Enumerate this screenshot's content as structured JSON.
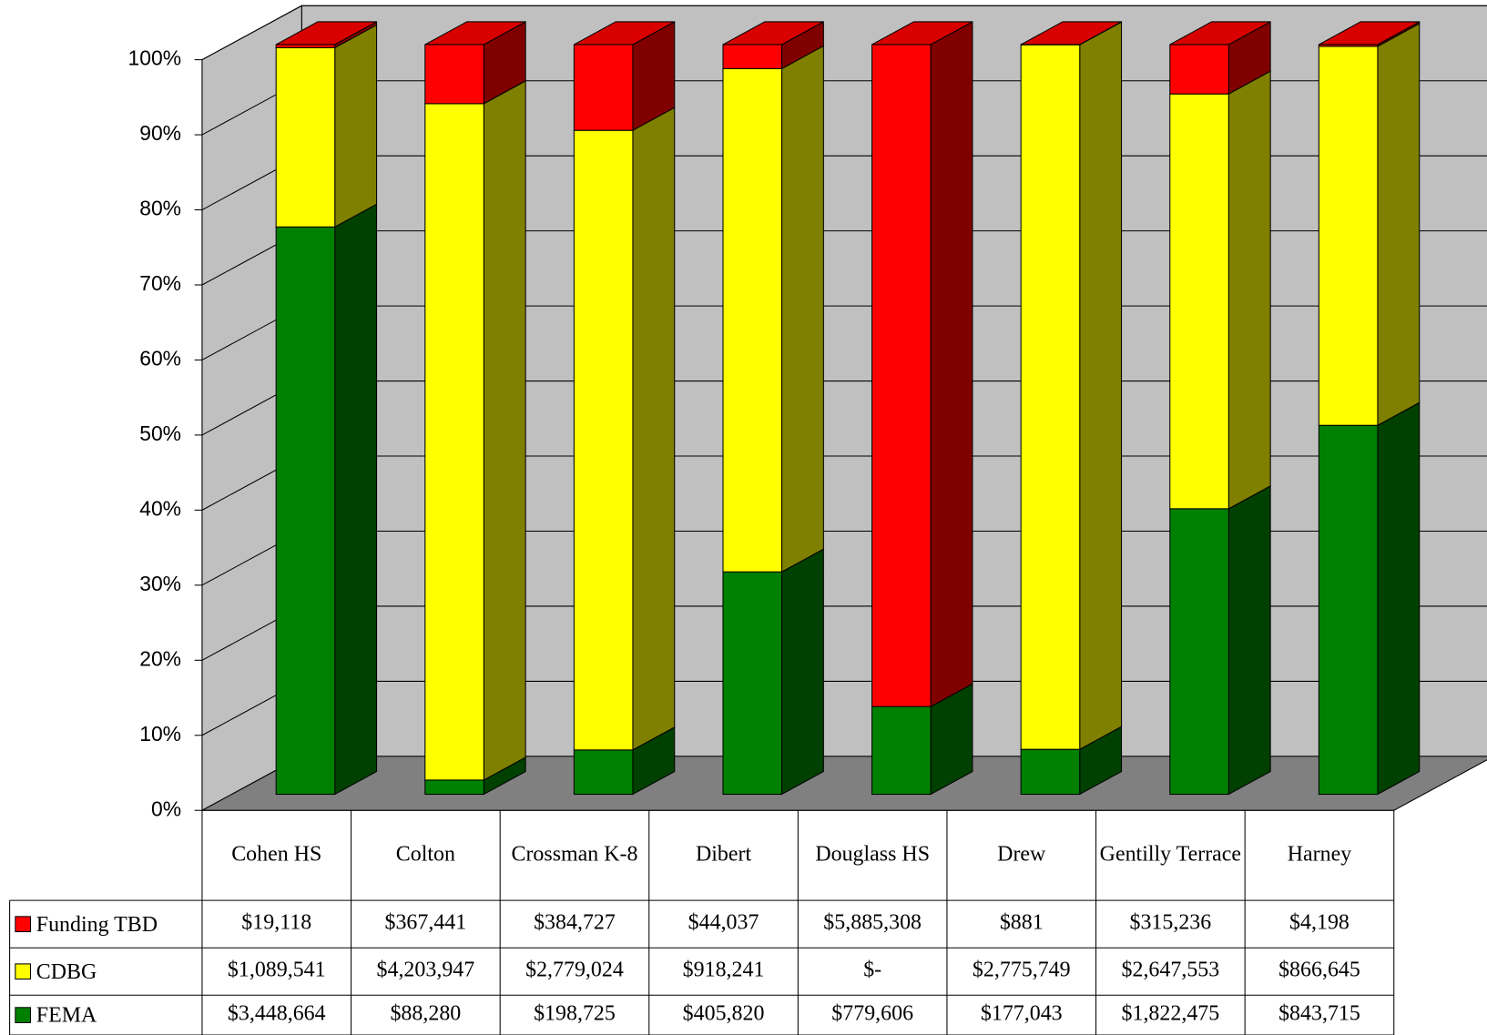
{
  "chart_data": {
    "type": "bar",
    "stack": "percent",
    "categories": [
      "Cohen HS",
      "Colton",
      "Crossman K-8",
      "Dibert",
      "Douglass HS",
      "Drew",
      "Gentilly Terrace",
      "Harney"
    ],
    "series": [
      {
        "name": "Funding TBD",
        "color": "#ff0000",
        "values": [
          19118,
          367441,
          384727,
          44037,
          5885308,
          881,
          315236,
          4198
        ],
        "value_labels": [
          "$19,118",
          "$367,441",
          "$384,727",
          "$44,037",
          "$5,885,308",
          "$881",
          "$315,236",
          "$4,198"
        ]
      },
      {
        "name": "CDBG",
        "color": "#ffff00",
        "values": [
          1089541,
          4203947,
          2779024,
          918241,
          0,
          2775749,
          2647553,
          866645
        ],
        "value_labels": [
          "$1,089,541",
          "$4,203,947",
          "$2,779,024",
          "$918,241",
          "$-",
          "$2,775,749",
          "$2,647,553",
          "$866,645"
        ]
      },
      {
        "name": "FEMA",
        "color": "#008000",
        "values": [
          3448664,
          88280,
          198725,
          405820,
          779606,
          177043,
          1822475,
          843715
        ],
        "value_labels": [
          "$3,448,664",
          "$88,280",
          "$198,725",
          "$405,820",
          "$779,606",
          "$177,043",
          "$1,822,475",
          "$843,715"
        ]
      }
    ],
    "ylim": [
      0,
      100
    ],
    "yticks": [
      {
        "value": 0,
        "label": "0%"
      },
      {
        "value": 10,
        "label": "10%"
      },
      {
        "value": 20,
        "label": "20%"
      },
      {
        "value": 30,
        "label": "30%"
      },
      {
        "value": 40,
        "label": "40%"
      },
      {
        "value": 50,
        "label": "50%"
      },
      {
        "value": 60,
        "label": "60%"
      },
      {
        "value": 70,
        "label": "70%"
      },
      {
        "value": 80,
        "label": "80%"
      },
      {
        "value": 90,
        "label": "90%"
      },
      {
        "value": 100,
        "label": "100%"
      }
    ],
    "grid": true,
    "data_table": true
  }
}
